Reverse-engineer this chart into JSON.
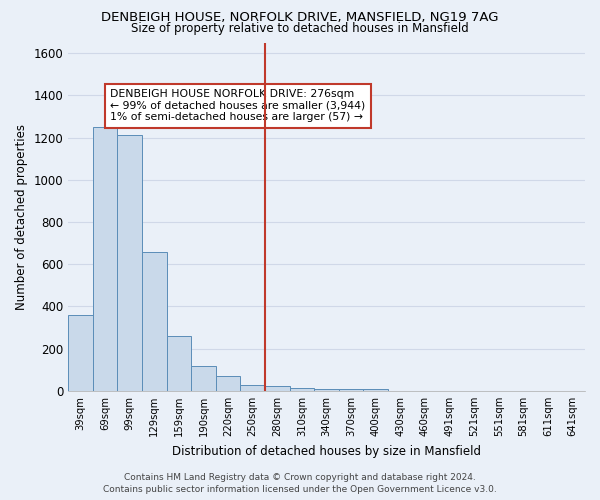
{
  "title1": "DENBEIGH HOUSE, NORFOLK DRIVE, MANSFIELD, NG19 7AG",
  "title2": "Size of property relative to detached houses in Mansfield",
  "xlabel": "Distribution of detached houses by size in Mansfield",
  "ylabel": "Number of detached properties",
  "categories": [
    "39sqm",
    "69sqm",
    "99sqm",
    "129sqm",
    "159sqm",
    "190sqm",
    "220sqm",
    "250sqm",
    "280sqm",
    "310sqm",
    "340sqm",
    "370sqm",
    "400sqm",
    "430sqm",
    "460sqm",
    "491sqm",
    "521sqm",
    "551sqm",
    "581sqm",
    "611sqm",
    "641sqm"
  ],
  "values": [
    360,
    1250,
    1210,
    660,
    260,
    120,
    70,
    30,
    25,
    15,
    10,
    10,
    10,
    0,
    0,
    0,
    0,
    0,
    0,
    0,
    0
  ],
  "bar_color": "#c9d9ea",
  "bar_edge_color": "#5b8db8",
  "red_line_index": 8,
  "red_line_color": "#c0392b",
  "annotation_text": "DENBEIGH HOUSE NORFOLK DRIVE: 276sqm\n← 99% of detached houses are smaller (3,944)\n1% of semi-detached houses are larger (57) →",
  "annotation_box_color": "#ffffff",
  "annotation_box_edge": "#c0392b",
  "ylim": [
    0,
    1650
  ],
  "yticks": [
    0,
    200,
    400,
    600,
    800,
    1000,
    1200,
    1400,
    1600
  ],
  "footer": "Contains HM Land Registry data © Crown copyright and database right 2024.\nContains public sector information licensed under the Open Government Licence v3.0.",
  "bg_color": "#eaf0f8",
  "grid_color": "#d0d8e8"
}
